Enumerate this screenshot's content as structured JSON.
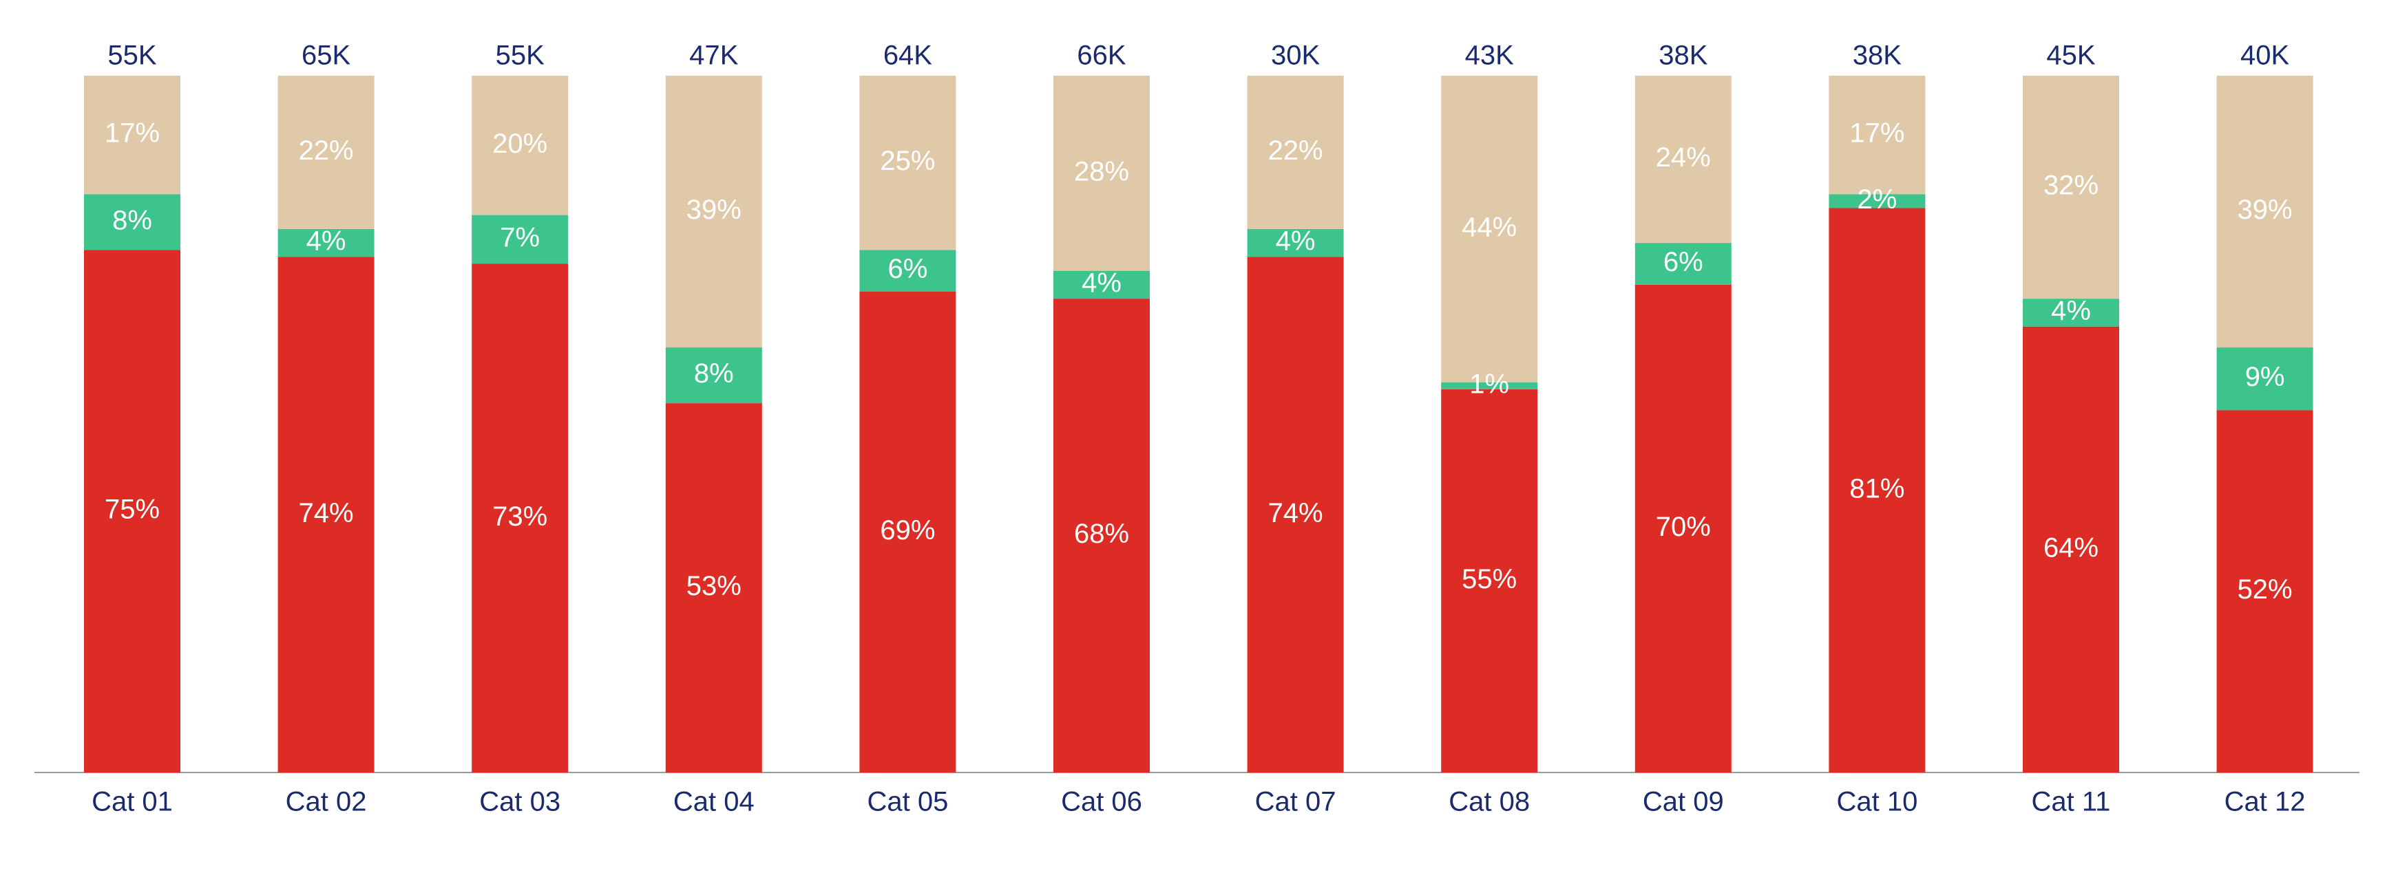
{
  "chart_data": {
    "type": "stacked_bar",
    "categories": [
      "Cat 01",
      "Cat 02",
      "Cat 03",
      "Cat 04",
      "Cat 05",
      "Cat 06",
      "Cat 07",
      "Cat 08",
      "Cat 09",
      "Cat 10",
      "Cat 11",
      "Cat 12"
    ],
    "ylim": [
      0,
      100
    ],
    "series": [
      {
        "color": "#dd2b25",
        "values": [
          75,
          74,
          73,
          53,
          69,
          68,
          74,
          55,
          70,
          81,
          64,
          52
        ],
        "value_labels": [
          "75%",
          "74%",
          "73%",
          "53%",
          "69%",
          "68%",
          "74%",
          "55%",
          "70%",
          "81%",
          "64%",
          "52%"
        ]
      },
      {
        "color": "#3dc48c",
        "values": [
          8,
          4,
          7,
          8,
          6,
          4,
          4,
          1,
          6,
          2,
          4,
          9
        ],
        "value_labels": [
          "8%",
          "4%",
          "7%",
          "8%",
          "6%",
          "4%",
          "4%",
          "1%",
          "6%",
          "2%",
          "4%",
          "9%"
        ]
      },
      {
        "color": "#dfc9a8",
        "values": [
          17,
          22,
          20,
          39,
          25,
          28,
          22,
          44,
          24,
          17,
          32,
          39
        ],
        "value_labels": [
          "17%",
          "22%",
          "20%",
          "39%",
          "25%",
          "28%",
          "22%",
          "44%",
          "24%",
          "17%",
          "32%",
          "39%"
        ]
      }
    ],
    "totals": {
      "values": [
        55000,
        65000,
        55000,
        47000,
        64000,
        66000,
        30000,
        43000,
        38000,
        38000,
        45000,
        40000
      ],
      "value_labels": [
        "55K",
        "65K",
        "55K",
        "47K",
        "64K",
        "66K",
        "30K",
        "43K",
        "38K",
        "38K",
        "45K",
        "40K"
      ]
    }
  }
}
